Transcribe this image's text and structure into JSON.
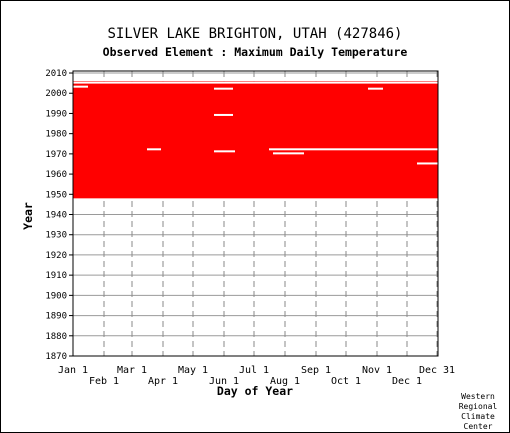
{
  "chart_data": {
    "type": "heatmap",
    "title": "SILVER LAKE BRIGHTON, UTAH   (427846)",
    "subtitle": "Observed Element : Maximum Daily Temperature",
    "xlabel": "Day of Year",
    "ylabel": "Year",
    "ylim": [
      1870,
      2011
    ],
    "yticks": [
      2010,
      2000,
      1990,
      1980,
      1970,
      1960,
      1950,
      1940,
      1930,
      1920,
      1910,
      1900,
      1890,
      1880,
      1870
    ],
    "xlim": [
      1,
      365
    ],
    "xticks": [
      {
        "label": "Jan 1",
        "day": 1,
        "row": 0
      },
      {
        "label": "Feb 1",
        "day": 32,
        "row": 1
      },
      {
        "label": "Mar 1",
        "day": 60,
        "row": 0
      },
      {
        "label": "Apr 1",
        "day": 91,
        "row": 1
      },
      {
        "label": "May 1",
        "day": 121,
        "row": 0
      },
      {
        "label": "Jun 1",
        "day": 152,
        "row": 1
      },
      {
        "label": "Jul 1",
        "day": 182,
        "row": 0
      },
      {
        "label": "Aug 1",
        "day": 213,
        "row": 1
      },
      {
        "label": "Sep 1",
        "day": 244,
        "row": 0
      },
      {
        "label": "Oct 1",
        "day": 274,
        "row": 1
      },
      {
        "label": "Nov 1",
        "day": 305,
        "row": 0
      },
      {
        "label": "Dec 1",
        "day": 335,
        "row": 1
      },
      {
        "label": "Dec 31",
        "day": 365,
        "row": 0
      }
    ],
    "grid": true,
    "data_color": "#ff0000",
    "data_blocks": [
      {
        "day_start": 1,
        "day_end": 365,
        "year_start": 1948,
        "year_end": 2005
      },
      {
        "day_start": 1,
        "day_end": 365,
        "year_start": 2005,
        "year_end": 2006
      }
    ],
    "missing_segments": [
      {
        "day_start": 1,
        "day_end": 365,
        "year_start": 2005,
        "year_end": 2006,
        "note": "partial top row"
      },
      {
        "day_start": 1,
        "day_end": 15,
        "year_start": 2003,
        "year_end": 2004
      },
      {
        "day_start": 142,
        "day_end": 160,
        "year_start": 2002,
        "year_end": 2003
      },
      {
        "day_start": 142,
        "day_end": 160,
        "year_start": 1989,
        "year_end": 1990
      },
      {
        "day_start": 75,
        "day_end": 88,
        "year_start": 1972,
        "year_end": 1973
      },
      {
        "day_start": 142,
        "day_end": 162,
        "year_start": 1971,
        "year_end": 1972
      },
      {
        "day_start": 197,
        "day_end": 365,
        "year_start": 1972,
        "year_end": 1973
      },
      {
        "day_start": 201,
        "day_end": 231,
        "year_start": 1970,
        "year_end": 1971
      },
      {
        "day_start": 296,
        "day_end": 310,
        "year_start": 2002,
        "year_end": 2003
      },
      {
        "day_start": 345,
        "day_end": 365,
        "year_start": 1965,
        "year_end": 1966
      },
      {
        "day_start": 152,
        "day_end": 365,
        "year_start": 1947,
        "year_end": 1948
      }
    ]
  },
  "credit": [
    "Western",
    "Regional",
    "Climate",
    "Center"
  ]
}
